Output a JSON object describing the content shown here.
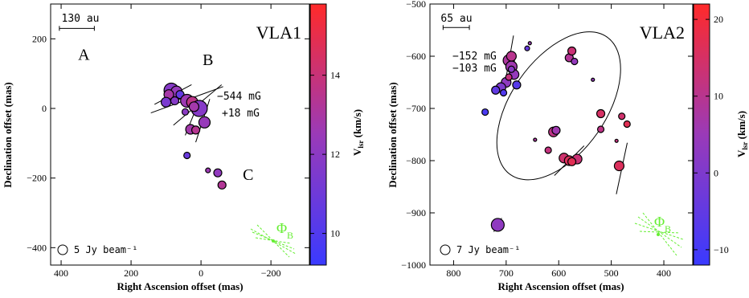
{
  "chart_data": [
    {
      "type": "scatter",
      "panel_label": "VLA1",
      "xlabel": "Right Ascension offset (mas)",
      "ylabel": "Declination offset (mas)",
      "xlim": [
        430,
        -310
      ],
      "ylim": [
        -450,
        300
      ],
      "xticks": [
        400,
        200,
        0,
        -200
      ],
      "xtick_labels": [
        "400",
        "200",
        "0",
        "−200"
      ],
      "yticks": [
        200,
        0,
        -200,
        -400
      ],
      "ytick_labels": [
        "200",
        "0",
        "−200",
        "−400"
      ],
      "scale_bar": {
        "label": "130 au",
        "x_from": 405,
        "x_to": 305,
        "y": 230
      },
      "region_labels": [
        {
          "text": "A",
          "x": 335,
          "y": 140
        },
        {
          "text": "B",
          "x": -20,
          "y": 125
        },
        {
          "text": "C",
          "x": -135,
          "y": -205
        }
      ],
      "field_labels": [
        "−544 mG",
        "+18 mG"
      ],
      "beam_label": "5 Jy beam⁻¹",
      "phi_label": "Φ",
      "phi_subscript": "B",
      "colorbar": {
        "label": "V",
        "label_sub": "lsr",
        "unit": "(km/s)",
        "range": [
          9.2,
          15.8
        ],
        "ticks": [
          10,
          12,
          14
        ],
        "tick_labels": [
          "10",
          "12",
          "14"
        ]
      },
      "points": [
        {
          "x": 85,
          "y": 52,
          "size": 9,
          "v": 11.8
        },
        {
          "x": 70,
          "y": 48,
          "size": 7,
          "v": 12.4
        },
        {
          "x": 92,
          "y": 40,
          "size": 6,
          "v": 12.9
        },
        {
          "x": 100,
          "y": 18,
          "size": 6,
          "v": 11.4
        },
        {
          "x": 75,
          "y": 22,
          "size": 5,
          "v": 11.8
        },
        {
          "x": 60,
          "y": 40,
          "size": 5,
          "v": 10.6
        },
        {
          "x": 40,
          "y": 22,
          "size": 8,
          "v": 12.6
        },
        {
          "x": 25,
          "y": 18,
          "size": 7,
          "v": 13.6
        },
        {
          "x": 5,
          "y": 0,
          "size": 10,
          "v": 11.8
        },
        {
          "x": 20,
          "y": 5,
          "size": 6,
          "v": 12.8
        },
        {
          "x": -10,
          "y": -40,
          "size": 7,
          "v": 12.4
        },
        {
          "x": 30,
          "y": -60,
          "size": 6,
          "v": 12.8
        },
        {
          "x": 15,
          "y": -62,
          "size": 5,
          "v": 13.4
        },
        {
          "x": 45,
          "y": -10,
          "size": 4,
          "v": 12.0
        },
        {
          "x": 40,
          "y": -135,
          "size": 4,
          "v": 10.8
        },
        {
          "x": -48,
          "y": -185,
          "size": 5,
          "v": 12.2
        },
        {
          "x": -60,
          "y": -220,
          "size": 5,
          "v": 13.3
        },
        {
          "x": -20,
          "y": -178,
          "size": 3,
          "v": 12.6
        }
      ],
      "vectors": [
        {
          "x": 80,
          "y": 40,
          "angle_deg": 28,
          "length": 120
        },
        {
          "x": 40,
          "y": 25,
          "angle_deg": 20,
          "length": 220
        },
        {
          "x": 10,
          "y": 10,
          "angle_deg": 40,
          "length": 180
        },
        {
          "x": 30,
          "y": -40,
          "angle_deg": 68,
          "length": 80
        },
        {
          "x": -5,
          "y": -35,
          "angle_deg": 72,
          "length": 130
        },
        {
          "x": 70,
          "y": 25,
          "angle_deg": 10,
          "length": 60
        }
      ]
    },
    {
      "type": "scatter",
      "panel_label": "VLA2",
      "xlabel": "Right Ascension offset (mas)",
      "ylabel": "Declination offset (mas)",
      "xlim": [
        845,
        345
      ],
      "ylim": [
        -1000,
        -500
      ],
      "xticks": [
        800,
        700,
        600,
        500,
        400
      ],
      "xtick_labels": [
        "800",
        "700",
        "600",
        "500",
        "400"
      ],
      "yticks": [
        -500,
        -600,
        -700,
        -800,
        -900,
        -1000
      ],
      "ytick_labels": [
        "−500",
        "−600",
        "−700",
        "−800",
        "−900",
        "−1000"
      ],
      "scale_bar": {
        "label": "65 au",
        "x_from": 820,
        "x_to": 770,
        "y": -545
      },
      "field_labels": [
        "−152 mG",
        "−103 mG"
      ],
      "beam_label": "7 Jy beam⁻¹",
      "phi_label": "Φ",
      "phi_subscript": "B",
      "ellipse": {
        "cx": 600,
        "cy": -695,
        "rx": 160,
        "ry": 90,
        "angle_deg": -55
      },
      "colorbar": {
        "label": "V",
        "label_sub": "lsr",
        "unit": "(km/s)",
        "range": [
          -12,
          22
        ],
        "ticks": [
          -10,
          0,
          10,
          20
        ],
        "tick_labels": [
          "−10",
          "0",
          "10",
          "20"
        ]
      },
      "points": [
        {
          "x": 695,
          "y": -608,
          "size": 7,
          "v": 8
        },
        {
          "x": 690,
          "y": -620,
          "size": 7,
          "v": 6
        },
        {
          "x": 685,
          "y": -635,
          "size": 6,
          "v": 4
        },
        {
          "x": 690,
          "y": -600,
          "size": 6,
          "v": 10
        },
        {
          "x": 700,
          "y": -650,
          "size": 6,
          "v": 3
        },
        {
          "x": 710,
          "y": -660,
          "size": 6,
          "v": 0
        },
        {
          "x": 720,
          "y": -665,
          "size": 5,
          "v": -5
        },
        {
          "x": 705,
          "y": -670,
          "size": 4,
          "v": -8
        },
        {
          "x": 680,
          "y": -655,
          "size": 5,
          "v": -7
        },
        {
          "x": 695,
          "y": -640,
          "size": 4,
          "v": 12
        },
        {
          "x": 690,
          "y": -625,
          "size": 4,
          "v": 2
        },
        {
          "x": 660,
          "y": -585,
          "size": 3,
          "v": -4
        },
        {
          "x": 655,
          "y": -575,
          "size": 2,
          "v": 5
        },
        {
          "x": 740,
          "y": -707,
          "size": 4,
          "v": -9
        },
        {
          "x": 580,
          "y": -603,
          "size": 5,
          "v": 9
        },
        {
          "x": 575,
          "y": -590,
          "size": 5,
          "v": 13
        },
        {
          "x": 570,
          "y": -610,
          "size": 4,
          "v": 4
        },
        {
          "x": 610,
          "y": -745,
          "size": 6,
          "v": 11
        },
        {
          "x": 605,
          "y": -742,
          "size": 5,
          "v": 6
        },
        {
          "x": 620,
          "y": -780,
          "size": 4,
          "v": 12
        },
        {
          "x": 590,
          "y": -795,
          "size": 6,
          "v": 14
        },
        {
          "x": 580,
          "y": -800,
          "size": 6,
          "v": 16
        },
        {
          "x": 565,
          "y": -797,
          "size": 6,
          "v": 13
        },
        {
          "x": 575,
          "y": -802,
          "size": 5,
          "v": 17
        },
        {
          "x": 520,
          "y": -710,
          "size": 5,
          "v": 15
        },
        {
          "x": 520,
          "y": -740,
          "size": 4,
          "v": 11
        },
        {
          "x": 480,
          "y": -715,
          "size": 4,
          "v": 14
        },
        {
          "x": 470,
          "y": -730,
          "size": 4,
          "v": 17
        },
        {
          "x": 485,
          "y": -810,
          "size": 6,
          "v": 16
        },
        {
          "x": 490,
          "y": -762,
          "size": 2,
          "v": 12
        },
        {
          "x": 535,
          "y": -645,
          "size": 2,
          "v": 4
        },
        {
          "x": 645,
          "y": -760,
          "size": 2,
          "v": 8
        },
        {
          "x": 716,
          "y": -923,
          "size": 8,
          "v": 3
        }
      ],
      "vectors": [
        {
          "x": 693,
          "y": -600,
          "angle_deg": 80,
          "length": 80
        },
        {
          "x": 580,
          "y": -800,
          "angle_deg": 45,
          "length": 80
        },
        {
          "x": 480,
          "y": -815,
          "angle_deg": 78,
          "length": 100
        },
        {
          "x": 716,
          "y": -923,
          "angle_deg": 60,
          "length": 30
        }
      ]
    }
  ]
}
